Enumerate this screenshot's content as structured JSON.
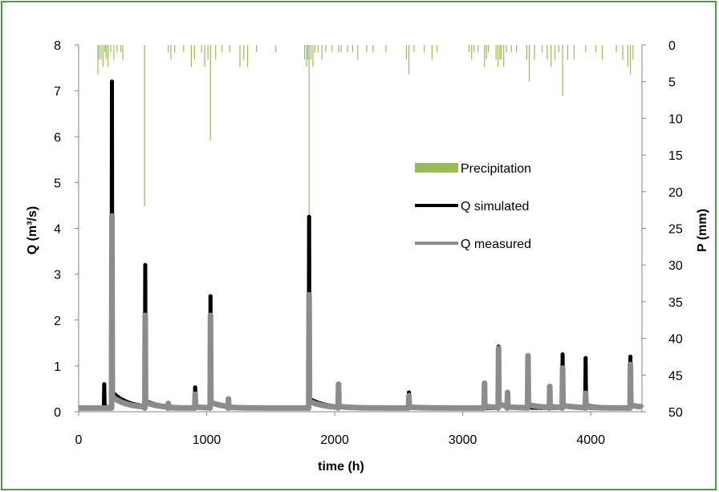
{
  "chart_data": {
    "type": "line",
    "xlabel": "time (h)",
    "ylabel_left": "Q (m³/s)",
    "ylabel_right": "P (mm)",
    "xlim": [
      0,
      4400
    ],
    "ylim_left": [
      0,
      8
    ],
    "ylim_right_inverted": [
      0,
      50
    ],
    "x_ticks": [
      "0",
      "1000",
      "2000",
      "3000",
      "4000"
    ],
    "y_left_ticks": [
      "0",
      "1",
      "2",
      "3",
      "4",
      "5",
      "6",
      "7",
      "8"
    ],
    "y_right_ticks": [
      "0",
      "5",
      "10",
      "15",
      "20",
      "25",
      "30",
      "35",
      "40",
      "45",
      "50"
    ],
    "legend_position": "center-right",
    "grid": false,
    "colors": {
      "precipitation": "#9bbb59",
      "simulated": "#000000",
      "measured": "#8c8c8c",
      "border": "#4f9a48"
    },
    "series": [
      {
        "name": "Precipitation",
        "kind": "bars_inverted_right_axis",
        "x": [
          150,
          160,
          175,
          190,
          205,
          215,
          230,
          250,
          275,
          300,
          330,
          345,
          515,
          700,
          720,
          750,
          820,
          880,
          905,
          960,
          985,
          1010,
          1030,
          1070,
          1120,
          1180,
          1260,
          1290,
          1320,
          1390,
          1540,
          1765,
          1780,
          1790,
          1800,
          1815,
          1830,
          1845,
          1870,
          1900,
          1930,
          1980,
          2030,
          2050,
          2100,
          2140,
          2180,
          2250,
          2300,
          2400,
          2560,
          2580,
          2620,
          2700,
          2760,
          2800,
          3050,
          3070,
          3090,
          3120,
          3170,
          3185,
          3200,
          3260,
          3275,
          3290,
          3300,
          3320,
          3340,
          3380,
          3420,
          3500,
          3520,
          3560,
          3620,
          3660,
          3690,
          3720,
          3750,
          3780,
          3820,
          3870,
          3960,
          4040,
          4090,
          4200,
          4250,
          4290,
          4310,
          4330
        ],
        "values": [
          4,
          2,
          2,
          3,
          1,
          2,
          3,
          1,
          2,
          1,
          1,
          2,
          22,
          1,
          2,
          1,
          1,
          3,
          2,
          1,
          3,
          2,
          13,
          2,
          1,
          1,
          3,
          2,
          3,
          1,
          1,
          2,
          3,
          2,
          50,
          2,
          3,
          1,
          1,
          2,
          1,
          1,
          1,
          1,
          1,
          1,
          2,
          1,
          1,
          1,
          2,
          4,
          1,
          1,
          2,
          1,
          1,
          2,
          1,
          1,
          3,
          2,
          1,
          2,
          3,
          2,
          2,
          3,
          1,
          1,
          1,
          2,
          5,
          2,
          1,
          2,
          3,
          2,
          1,
          7,
          2,
          2,
          1,
          1,
          2,
          1,
          2,
          3,
          4,
          2
        ]
      },
      {
        "name": "Q simulated",
        "peaks": [
          {
            "x": 200,
            "y": 0.6
          },
          {
            "x": 260,
            "y": 7.2
          },
          {
            "x": 520,
            "y": 3.2
          },
          {
            "x": 910,
            "y": 0.53
          },
          {
            "x": 1030,
            "y": 2.52
          },
          {
            "x": 1800,
            "y": 4.25
          },
          {
            "x": 2580,
            "y": 0.42
          },
          {
            "x": 3280,
            "y": 1.42
          },
          {
            "x": 3780,
            "y": 1.25
          },
          {
            "x": 3960,
            "y": 1.17
          },
          {
            "x": 4310,
            "y": 1.2
          }
        ]
      },
      {
        "name": "Q measured",
        "peaks": [
          {
            "x": 260,
            "y": 4.27
          },
          {
            "x": 520,
            "y": 2.1
          },
          {
            "x": 700,
            "y": 0.18
          },
          {
            "x": 910,
            "y": 0.38
          },
          {
            "x": 1030,
            "y": 2.1
          },
          {
            "x": 1170,
            "y": 0.28
          },
          {
            "x": 1800,
            "y": 2.55
          },
          {
            "x": 2030,
            "y": 0.6
          },
          {
            "x": 2580,
            "y": 0.35
          },
          {
            "x": 3170,
            "y": 0.62
          },
          {
            "x": 3280,
            "y": 1.38
          },
          {
            "x": 3350,
            "y": 0.42
          },
          {
            "x": 3510,
            "y": 1.22
          },
          {
            "x": 3680,
            "y": 0.55
          },
          {
            "x": 3780,
            "y": 0.95
          },
          {
            "x": 3960,
            "y": 0.4
          },
          {
            "x": 4310,
            "y": 1.03
          }
        ]
      }
    ]
  }
}
